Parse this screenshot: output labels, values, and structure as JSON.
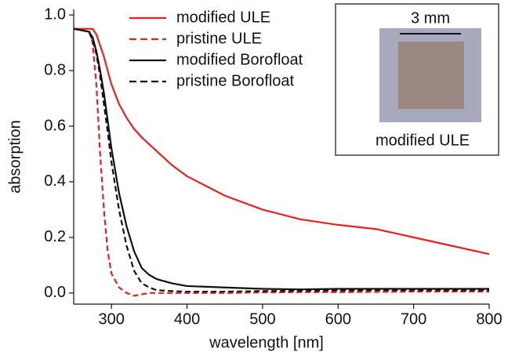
{
  "chart_data": {
    "type": "line",
    "xlabel": "wavelength [nm]",
    "ylabel": "absorption",
    "x": [
      250,
      270,
      275,
      280,
      285,
      290,
      295,
      300,
      310,
      320,
      330,
      340,
      350,
      360,
      380,
      400,
      450,
      500,
      550,
      600,
      650,
      700,
      750,
      800
    ],
    "series": [
      {
        "name": "modified ULE",
        "color": "#e8211d",
        "dash": false,
        "values": [
          0.95,
          0.95,
          0.95,
          0.93,
          0.89,
          0.85,
          0.8,
          0.75,
          0.68,
          0.63,
          0.59,
          0.56,
          0.535,
          0.51,
          0.46,
          0.42,
          0.35,
          0.3,
          0.265,
          0.245,
          0.23,
          0.2,
          0.17,
          0.14
        ]
      },
      {
        "name": "pristine ULE",
        "color": "#e8211d",
        "dash": true,
        "values": [
          0.95,
          0.95,
          0.9,
          0.75,
          0.5,
          0.3,
          0.15,
          0.07,
          0.02,
          0,
          -0.01,
          -0.005,
          0,
          0,
          0,
          0,
          0,
          0.002,
          0.003,
          0.003,
          0.004,
          0.005,
          0.005,
          0.005
        ]
      },
      {
        "name": "modified Borofloat",
        "color": "#111111",
        "dash": false,
        "values": [
          0.95,
          0.94,
          0.92,
          0.87,
          0.8,
          0.72,
          0.62,
          0.52,
          0.36,
          0.24,
          0.15,
          0.09,
          0.065,
          0.05,
          0.035,
          0.025,
          0.02,
          0.015,
          0.013,
          0.015,
          0.015,
          0.015,
          0.015,
          0.015
        ]
      },
      {
        "name": "pristine Borofloat",
        "color": "#111111",
        "dash": true,
        "values": [
          0.95,
          0.94,
          0.91,
          0.86,
          0.78,
          0.68,
          0.58,
          0.47,
          0.3,
          0.17,
          0.08,
          0.035,
          0.02,
          0.01,
          0.007,
          0.005,
          0.005,
          0.007,
          0.008,
          0.009,
          0.01,
          0.01,
          0.01,
          0.01
        ]
      }
    ],
    "xlim": [
      250,
      800
    ],
    "xticks": [
      300,
      400,
      500,
      600,
      700,
      800
    ],
    "ylim": [
      -0.04,
      1.02
    ],
    "yticks": [
      {
        "value": 0,
        "label": "0.0"
      },
      {
        "value": 0.2,
        "label": "0.2"
      },
      {
        "value": 0.4,
        "label": "0.4"
      },
      {
        "value": 0.6,
        "label": "0.6"
      },
      {
        "value": 0.8,
        "label": "0.8"
      },
      {
        "value": 1,
        "label": "1.0"
      }
    ],
    "legend": "upper-left",
    "inset": {
      "scale_label": "3 mm",
      "caption": "modified ULE"
    }
  }
}
